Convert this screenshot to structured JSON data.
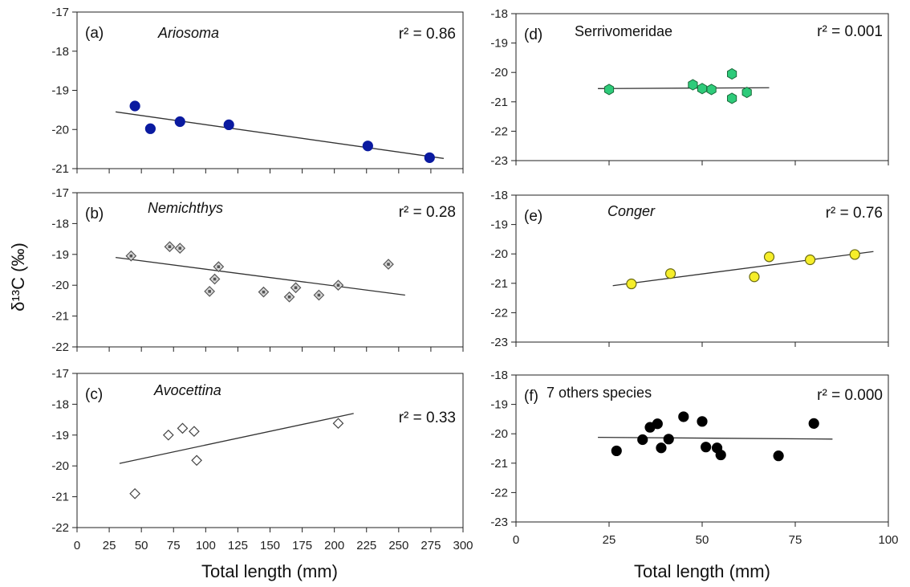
{
  "figure": {
    "xlabel_left": "Total length (mm)",
    "xlabel_right": "Total length (mm)",
    "ylabel": "δ¹³C (‰)"
  },
  "chart_data": [
    {
      "id": "a",
      "type": "scatter",
      "panel_label": "(a)",
      "title": "Ariosoma",
      "title_italic": true,
      "annotation": "r² = 0.86",
      "xlim": [
        0,
        300
      ],
      "ylim": [
        -21,
        -17
      ],
      "xticks": [
        0,
        25,
        50,
        75,
        100,
        125,
        150,
        175,
        200,
        225,
        250,
        275,
        300
      ],
      "yticks": [
        -21,
        -20,
        -19,
        -18,
        -17
      ],
      "marker": "circle",
      "marker_color": "#0a1aa0",
      "marker_fill": "#0a1aa0",
      "points": [
        [
          45,
          -19.4
        ],
        [
          57,
          -19.98
        ],
        [
          80,
          -19.8
        ],
        [
          118,
          -19.88
        ],
        [
          226,
          -20.42
        ],
        [
          274,
          -20.72
        ]
      ],
      "fit": [
        [
          30,
          -19.55
        ],
        [
          285,
          -20.74
        ]
      ]
    },
    {
      "id": "b",
      "type": "scatter",
      "panel_label": "(b)",
      "title": "Nemichthys",
      "title_italic": true,
      "annotation": "r² = 0.28",
      "xlim": [
        0,
        300
      ],
      "ylim": [
        -22,
        -17
      ],
      "xticks": [
        0,
        25,
        50,
        75,
        100,
        125,
        150,
        175,
        200,
        225,
        250,
        275,
        300
      ],
      "yticks": [
        -22,
        -21,
        -20,
        -19,
        -18,
        -17
      ],
      "marker": "diamond-dot",
      "marker_color": "#555555",
      "marker_fill": "#d8d8d8",
      "points": [
        [
          42,
          -19.05
        ],
        [
          72,
          -18.75
        ],
        [
          80,
          -18.8
        ],
        [
          103,
          -20.2
        ],
        [
          107,
          -19.8
        ],
        [
          110,
          -19.4
        ],
        [
          145,
          -20.22
        ],
        [
          165,
          -20.38
        ],
        [
          170,
          -20.08
        ],
        [
          188,
          -20.32
        ],
        [
          203,
          -20.0
        ],
        [
          242,
          -19.32
        ]
      ],
      "fit": [
        [
          30,
          -19.1
        ],
        [
          255,
          -20.32
        ]
      ]
    },
    {
      "id": "c",
      "type": "scatter",
      "panel_label": "(c)",
      "title": "Avocettina",
      "title_italic": true,
      "annotation": "r² = 0.33",
      "xlim": [
        0,
        300
      ],
      "ylim": [
        -22,
        -17
      ],
      "xticks": [
        0,
        25,
        50,
        75,
        100,
        125,
        150,
        175,
        200,
        225,
        250,
        275,
        300
      ],
      "yticks": [
        -22,
        -21,
        -20,
        -19,
        -18,
        -17
      ],
      "marker": "diamond",
      "marker_color": "#444444",
      "marker_fill": "#ffffff",
      "points": [
        [
          45,
          -20.9
        ],
        [
          71,
          -19.0
        ],
        [
          82,
          -18.78
        ],
        [
          91,
          -18.88
        ],
        [
          93,
          -19.82
        ],
        [
          203,
          -18.62
        ]
      ],
      "fit": [
        [
          33,
          -19.92
        ],
        [
          215,
          -18.3
        ]
      ]
    },
    {
      "id": "d",
      "type": "scatter",
      "panel_label": "(d)",
      "title": "Serrivomeridae",
      "title_italic": false,
      "annotation": "r² = 0.001",
      "xlim": [
        0,
        100
      ],
      "ylim": [
        -23,
        -18
      ],
      "xticks": [
        0,
        25,
        50,
        75,
        100
      ],
      "yticks": [
        -23,
        -22,
        -21,
        -20,
        -19,
        -18
      ],
      "marker": "hexagon",
      "marker_color": "#1a6a3a",
      "marker_fill": "#2ecb7a",
      "points": [
        [
          25,
          -20.58
        ],
        [
          47.5,
          -20.42
        ],
        [
          50,
          -20.55
        ],
        [
          52.5,
          -20.58
        ],
        [
          58,
          -20.05
        ],
        [
          58,
          -20.88
        ],
        [
          62,
          -20.68
        ]
      ],
      "fit": [
        [
          22,
          -20.55
        ],
        [
          68,
          -20.52
        ]
      ]
    },
    {
      "id": "e",
      "type": "scatter",
      "panel_label": "(e)",
      "title": "Conger",
      "title_italic": true,
      "annotation": "r² = 0.76",
      "xlim": [
        0,
        100
      ],
      "ylim": [
        -23,
        -18
      ],
      "xticks": [
        0,
        25,
        50,
        75,
        100
      ],
      "yticks": [
        -23,
        -22,
        -21,
        -20,
        -19,
        -18
      ],
      "marker": "circle",
      "marker_color": "#6a6a10",
      "marker_fill": "#f6ee2a",
      "points": [
        [
          31,
          -21.02
        ],
        [
          41.5,
          -20.67
        ],
        [
          64,
          -20.78
        ],
        [
          68,
          -20.1
        ],
        [
          79,
          -20.2
        ],
        [
          91,
          -20.02
        ]
      ],
      "fit": [
        [
          26,
          -21.08
        ],
        [
          96,
          -19.92
        ]
      ]
    },
    {
      "id": "f",
      "type": "scatter",
      "panel_label": "(f)",
      "title": "7 others species",
      "title_italic": false,
      "annotation": "r² = 0.000",
      "xlim": [
        0,
        100
      ],
      "ylim": [
        -23,
        -18
      ],
      "xticks": [
        0,
        25,
        50,
        75,
        100
      ],
      "yticks": [
        -23,
        -22,
        -21,
        -20,
        -19,
        -18
      ],
      "marker": "circle",
      "marker_color": "#000000",
      "marker_fill": "#000000",
      "points": [
        [
          27,
          -20.58
        ],
        [
          34,
          -20.2
        ],
        [
          36,
          -19.78
        ],
        [
          38,
          -19.66
        ],
        [
          39,
          -20.48
        ],
        [
          41,
          -20.18
        ],
        [
          45,
          -19.42
        ],
        [
          50,
          -19.58
        ],
        [
          51,
          -20.45
        ],
        [
          54,
          -20.48
        ],
        [
          55,
          -20.72
        ],
        [
          70.5,
          -20.75
        ],
        [
          80,
          -19.65
        ]
      ],
      "fit": [
        [
          22,
          -20.12
        ],
        [
          85,
          -20.18
        ]
      ]
    }
  ]
}
